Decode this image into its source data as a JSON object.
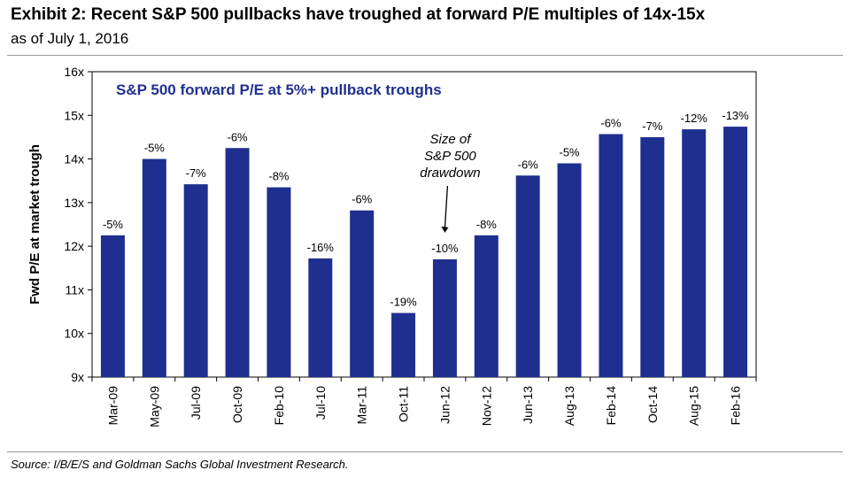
{
  "header": {
    "title": "Exhibit 2: Recent S&P 500 pullbacks have troughed at forward P/E multiples of 14x-15x",
    "subtitle": "as of July 1, 2016"
  },
  "footer": {
    "source": "Source: I/B/E/S and Goldman Sachs Global Investment Research."
  },
  "colors": {
    "bar": "#1f2f8f",
    "inner_title": "#1f2f8f"
  },
  "chart_data": {
    "type": "bar",
    "title": "S&P 500 forward P/E at 5%+ pullback troughs",
    "ylabel": "Fwd P/E at market trough",
    "xlabel": "",
    "ylim": [
      9,
      16
    ],
    "yticks": [
      9,
      10,
      11,
      12,
      13,
      14,
      15,
      16
    ],
    "ytick_labels": [
      "9x",
      "10x",
      "11x",
      "12x",
      "13x",
      "14x",
      "15x",
      "16x"
    ],
    "grid": false,
    "categories": [
      "Mar-09",
      "May-09",
      "Jul-09",
      "Oct-09",
      "Feb-10",
      "Jul-10",
      "Mar-11",
      "Oct-11",
      "Jun-12",
      "Nov-12",
      "Jun-13",
      "Aug-13",
      "Feb-14",
      "Oct-14",
      "Aug-15",
      "Feb-16"
    ],
    "values": [
      12.25,
      14.0,
      13.42,
      14.25,
      13.35,
      11.72,
      12.82,
      10.47,
      11.7,
      12.25,
      13.62,
      13.9,
      14.57,
      14.5,
      14.68,
      14.74
    ],
    "data_labels": [
      "-5%",
      "-5%",
      "-7%",
      "-6%",
      "-8%",
      "-16%",
      "-6%",
      "-19%",
      "-10%",
      "-8%",
      "-6%",
      "-5%",
      "-6%",
      "-7%",
      "-12%",
      "-13%"
    ],
    "annotation": {
      "lines": [
        "Size of",
        "S&P 500",
        "drawdown"
      ],
      "points_to": "Jun-12"
    }
  }
}
